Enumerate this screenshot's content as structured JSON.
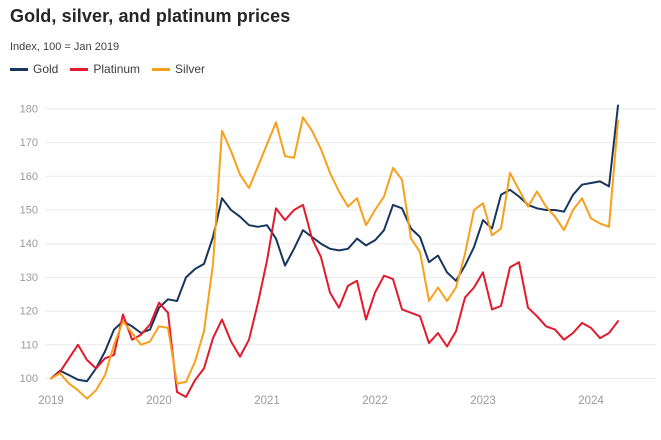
{
  "chart_data": {
    "type": "line",
    "title": "Gold, silver, and platinum prices",
    "subtitle": "Index, 100 = Jan 2019",
    "x": {
      "start": "2019-01",
      "end": "2024-04",
      "frequency": "monthly",
      "count": 64
    },
    "x_tick_labels": [
      "2019",
      "2020",
      "2021",
      "2022",
      "2023",
      "2024"
    ],
    "y_ticks": [
      100,
      110,
      120,
      130,
      140,
      150,
      160,
      170,
      180
    ],
    "ylim": [
      93,
      183
    ],
    "grid": "horizontal",
    "legend_position": "top-left",
    "colors": {
      "gold": "#17365d",
      "platinum": "#e3192d",
      "silver": "#f9a01b"
    },
    "series": [
      {
        "name": "Gold",
        "color": "#17365d",
        "values": [
          100,
          102.3,
          101,
          99.6,
          99.2,
          103,
          108,
          114.5,
          117,
          115.5,
          113.5,
          114.5,
          121,
          123.5,
          123,
          130,
          132.5,
          134,
          142,
          153.5,
          150,
          148,
          145.5,
          145,
          145.5,
          141.5,
          133.5,
          138.5,
          144,
          142,
          140,
          138.5,
          138,
          138.5,
          141.5,
          139.5,
          141,
          144,
          151.5,
          150.5,
          144.5,
          142,
          134.5,
          136.5,
          131.5,
          129,
          133.5,
          139,
          147,
          144.5,
          154.5,
          156,
          154,
          151.5,
          150.5,
          150,
          150,
          149.5,
          154.5,
          157.5,
          158,
          158.5,
          157,
          181
        ]
      },
      {
        "name": "Platinum",
        "color": "#e3192d",
        "values": [
          100,
          102,
          106,
          110,
          105.5,
          103,
          106,
          107,
          119,
          111.5,
          113,
          116,
          122.5,
          119.5,
          96,
          94.5,
          99.5,
          103,
          112,
          117.5,
          111,
          106.5,
          111.5,
          122.5,
          135,
          150.5,
          147,
          150,
          151.5,
          141.5,
          136,
          125.5,
          121,
          127.5,
          129,
          117.5,
          125.5,
          130.5,
          129.5,
          120.5,
          119.5,
          118.5,
          110.5,
          113.5,
          109.5,
          114,
          124,
          127,
          131.5,
          120.5,
          121.5,
          133,
          134.5,
          121,
          118.5,
          115.5,
          114.5,
          111.5,
          113.5,
          116.5,
          115,
          112,
          113.5,
          117
        ]
      },
      {
        "name": "Silver",
        "color": "#f9a01b",
        "values": [
          100,
          101.5,
          98.5,
          96.5,
          94,
          96.5,
          101,
          110,
          117,
          113.5,
          110,
          111,
          115.5,
          115,
          98.5,
          99,
          105,
          114,
          134,
          173.5,
          167.5,
          160.5,
          156.5,
          163,
          169.5,
          176,
          166,
          165.5,
          177.5,
          173.5,
          168,
          161,
          155.5,
          151,
          153.5,
          145.5,
          150,
          154,
          162.5,
          159,
          141.5,
          137.5,
          123,
          127,
          123,
          127,
          137,
          150,
          152,
          142.5,
          144.5,
          161,
          156,
          151,
          155.5,
          151,
          148,
          144,
          150,
          153.5,
          147.5,
          146,
          145,
          176.5
        ]
      }
    ]
  },
  "style": {
    "gridline_color": "#eaeaea",
    "tick_label_color": "#9b9b9b",
    "text_color": "#3d3d3d"
  }
}
